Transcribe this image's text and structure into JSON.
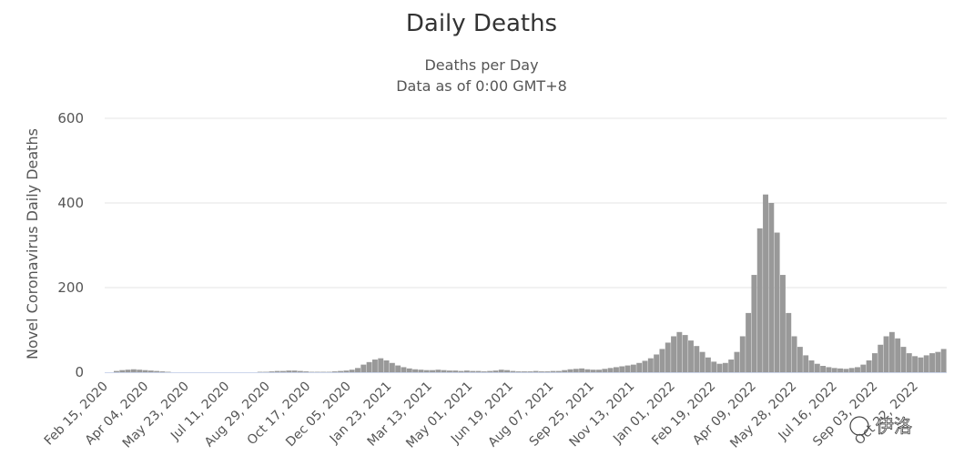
{
  "title": "Daily Deaths",
  "subtitle_line1": "Deaths per Day",
  "subtitle_line2": "Data as of 0:00 GMT+8",
  "watermark": "伊洛",
  "colors": {
    "bar": "#999999",
    "grid": "#e6e6e6",
    "axis": "#ccd6eb",
    "text": "#333333"
  },
  "chart_data": {
    "type": "bar",
    "title": "Daily Deaths",
    "subtitle": [
      "Deaths per Day",
      "Data as of 0:00 GMT+8"
    ],
    "xlabel": "",
    "ylabel": "Novel Coronavirus Daily Deaths",
    "ylim": [
      0,
      600
    ],
    "yticks": [
      0,
      200,
      400,
      600
    ],
    "grid": true,
    "legend": "none",
    "x_tick_labels": [
      "Feb 15, 2020",
      "Apr 04, 2020",
      "May 23, 2020",
      "Jul 11, 2020",
      "Aug 29, 2020",
      "Oct 17, 2020",
      "Dec 05, 2020",
      "Jan 23, 2021",
      "Mar 13, 2021",
      "May 01, 2021",
      "Jun 19, 2021",
      "Aug 07, 2021",
      "Sep 25, 2021",
      "Nov 13, 2021",
      "Jan 01, 2022",
      "Feb 19, 2022",
      "Apr 09, 2022",
      "May 28, 2022",
      "Jul 16, 2022",
      "Sep 03, 2022",
      "Oct 22, 2022"
    ],
    "weekly_start_dates": [
      "2020-02-15",
      "2020-02-22",
      "2020-02-29",
      "2020-03-07",
      "2020-03-14",
      "2020-03-21",
      "2020-03-28",
      "2020-04-04",
      "2020-04-11",
      "2020-04-18",
      "2020-04-25",
      "2020-05-02",
      "2020-05-09",
      "2020-05-16",
      "2020-05-23",
      "2020-05-30",
      "2020-06-06",
      "2020-06-13",
      "2020-06-20",
      "2020-06-27",
      "2020-07-04",
      "2020-07-11",
      "2020-07-18",
      "2020-07-25",
      "2020-08-01",
      "2020-08-08",
      "2020-08-15",
      "2020-08-22",
      "2020-08-29",
      "2020-09-05",
      "2020-09-12",
      "2020-09-19",
      "2020-09-26",
      "2020-10-03",
      "2020-10-10",
      "2020-10-17",
      "2020-10-24",
      "2020-10-31",
      "2020-11-07",
      "2020-11-14",
      "2020-11-21",
      "2020-11-28",
      "2020-12-05",
      "2020-12-12",
      "2020-12-19",
      "2020-12-26",
      "2021-01-02",
      "2021-01-09",
      "2021-01-16",
      "2021-01-23",
      "2021-01-30",
      "2021-02-06",
      "2021-02-13",
      "2021-02-20",
      "2021-02-27",
      "2021-03-06",
      "2021-03-13",
      "2021-03-20",
      "2021-03-27",
      "2021-04-03",
      "2021-04-10",
      "2021-04-17",
      "2021-04-24",
      "2021-05-01",
      "2021-05-08",
      "2021-05-15",
      "2021-05-22",
      "2021-05-29",
      "2021-06-05",
      "2021-06-12",
      "2021-06-19",
      "2021-06-26",
      "2021-07-03",
      "2021-07-10",
      "2021-07-17",
      "2021-07-24",
      "2021-07-31",
      "2021-08-07",
      "2021-08-14",
      "2021-08-21",
      "2021-08-28",
      "2021-09-04",
      "2021-09-11",
      "2021-09-18",
      "2021-09-25",
      "2021-10-02",
      "2021-10-09",
      "2021-10-16",
      "2021-10-23",
      "2021-10-30",
      "2021-11-06",
      "2021-11-13",
      "2021-11-20",
      "2021-11-27",
      "2021-12-04",
      "2021-12-11",
      "2021-12-18",
      "2021-12-25",
      "2022-01-01",
      "2022-01-08",
      "2022-01-15",
      "2022-01-22",
      "2022-01-29",
      "2022-02-05",
      "2022-02-12",
      "2022-02-19",
      "2022-02-26",
      "2022-03-05",
      "2022-03-12",
      "2022-03-19",
      "2022-03-26",
      "2022-04-02",
      "2022-04-09",
      "2022-04-16",
      "2022-04-23",
      "2022-04-30",
      "2022-05-07",
      "2022-05-14",
      "2022-05-21",
      "2022-05-28",
      "2022-06-04",
      "2022-06-11",
      "2022-06-18",
      "2022-06-25",
      "2022-07-02",
      "2022-07-09",
      "2022-07-16",
      "2022-07-23",
      "2022-07-30",
      "2022-08-06",
      "2022-08-13",
      "2022-08-20",
      "2022-08-27",
      "2022-09-03",
      "2022-09-10",
      "2022-09-17",
      "2022-09-24",
      "2022-10-01",
      "2022-10-08",
      "2022-10-15",
      "2022-10-22",
      "2022-10-29",
      "2022-11-05",
      "2022-11-12",
      "2022-11-19"
    ],
    "series": [
      {
        "values": [
          3,
          5,
          6,
          7,
          6,
          5,
          4,
          3,
          2,
          1,
          0,
          0,
          0,
          0,
          0,
          0,
          0,
          0,
          0,
          0,
          0,
          0,
          0,
          0,
          0,
          1,
          1,
          2,
          3,
          3,
          4,
          4,
          3,
          2,
          1,
          1,
          1,
          1,
          2,
          3,
          4,
          6,
          10,
          18,
          24,
          30,
          33,
          28,
          22,
          16,
          12,
          9,
          7,
          6,
          5,
          5,
          6,
          5,
          4,
          4,
          3,
          4,
          3,
          3,
          2,
          3,
          4,
          6,
          5,
          3,
          2,
          2,
          2,
          3,
          2,
          2,
          3,
          3,
          5,
          7,
          8,
          9,
          7,
          6,
          6,
          8,
          10,
          12,
          14,
          16,
          18,
          22,
          27,
          33,
          42,
          55,
          70,
          85,
          95,
          88,
          75,
          62,
          48,
          35,
          25,
          20,
          22,
          30,
          48,
          85,
          140,
          230,
          340,
          420,
          400,
          330,
          230,
          140,
          85,
          60,
          40,
          28,
          20,
          15,
          12,
          10,
          9,
          8,
          10,
          12,
          18,
          28,
          45,
          65,
          85,
          95,
          80,
          60,
          45,
          38,
          35,
          40,
          45,
          48,
          55,
          60
        ]
      }
    ]
  }
}
